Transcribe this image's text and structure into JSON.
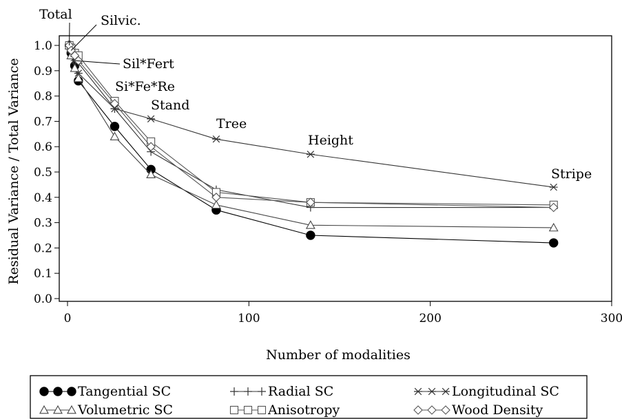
{
  "chart_data": {
    "type": "line",
    "xlabel": "Number of modalities",
    "ylabel": "Residual Variance / Total Variance",
    "xlim": [
      0,
      300
    ],
    "ylim": [
      0,
      1.0
    ],
    "x_ticks": [
      "0",
      "100",
      "200",
      "300"
    ],
    "y_ticks": [
      "0.0",
      "0.1",
      "0.2",
      "0.3",
      "0.4",
      "0.5",
      "0.6",
      "0.7",
      "0.8",
      "0.9",
      "1.0"
    ],
    "x": [
      1,
      2,
      4,
      6,
      26,
      46,
      82,
      134,
      268
    ],
    "grid": false,
    "legend_position": "bottom",
    "annotations": [
      {
        "text": "Total",
        "x": 1,
        "y": 1.0
      },
      {
        "text": "Silvic.",
        "x": 2,
        "y": 0.98
      },
      {
        "text": "Sil*Fert",
        "x": 4,
        "y": 0.94
      },
      {
        "text": "Si*Fe*Re",
        "x": 26,
        "y": 0.78
      },
      {
        "text": "Stand",
        "x": 46,
        "y": 0.71
      },
      {
        "text": "Tree",
        "x": 82,
        "y": 0.63
      },
      {
        "text": "Height",
        "x": 134,
        "y": 0.57
      },
      {
        "text": "Stripe",
        "x": 268,
        "y": 0.44
      }
    ],
    "series": [
      {
        "name": "Tangential SC",
        "marker": "filled-circle",
        "color": "#000000",
        "values": [
          1.0,
          0.97,
          0.92,
          0.86,
          0.68,
          0.51,
          0.35,
          0.25,
          0.22
        ]
      },
      {
        "name": "Radial SC",
        "marker": "plus",
        "color": "#333333",
        "values": [
          1.0,
          0.98,
          0.95,
          0.93,
          0.75,
          0.58,
          0.43,
          0.36,
          0.36
        ]
      },
      {
        "name": "Longitudinal SC",
        "marker": "star",
        "color": "#333333",
        "values": [
          1.0,
          0.97,
          0.94,
          0.89,
          0.75,
          0.71,
          0.63,
          0.57,
          0.44
        ]
      },
      {
        "name": "Volumetric SC",
        "marker": "triangle",
        "color": "#444444",
        "values": [
          1.0,
          0.96,
          0.91,
          0.87,
          0.64,
          0.49,
          0.37,
          0.29,
          0.28
        ]
      },
      {
        "name": "Anisotropy",
        "marker": "square",
        "color": "#555555",
        "values": [
          1.0,
          0.99,
          0.97,
          0.96,
          0.78,
          0.62,
          0.42,
          0.38,
          0.37
        ]
      },
      {
        "name": "Wood Density",
        "marker": "diamond",
        "color": "#555555",
        "values": [
          1.0,
          0.98,
          0.96,
          0.94,
          0.77,
          0.6,
          0.4,
          0.38,
          0.36
        ]
      }
    ]
  }
}
